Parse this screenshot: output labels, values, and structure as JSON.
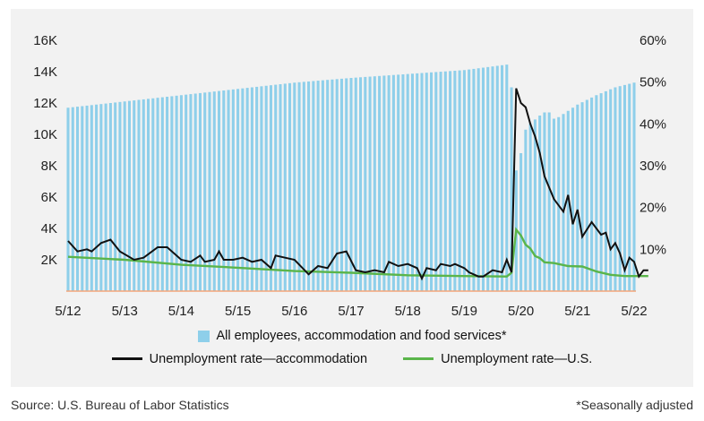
{
  "footer": {
    "source": "Source: U.S. Bureau of Labor Statistics",
    "note": "*Seasonally adjusted"
  },
  "colors": {
    "bars": "#8ecfea",
    "accommodation_line": "#111111",
    "us_line": "#5ab54a",
    "baseline": "#f4a67a"
  },
  "chart_data": {
    "type": "bar+line",
    "x_ticks": [
      "5/12",
      "5/13",
      "5/14",
      "5/15",
      "5/16",
      "5/17",
      "5/18",
      "5/19",
      "5/20",
      "5/21",
      "5/22"
    ],
    "x_range": [
      "2012-05",
      "2022-05"
    ],
    "left_axis": {
      "ticks": [
        "16K",
        "14K",
        "12K",
        "10K",
        "8K",
        "6K",
        "4K",
        "2K"
      ],
      "ylim": [
        0,
        16000
      ]
    },
    "right_axis": {
      "ticks": [
        "60%",
        "50%",
        "40%",
        "30%",
        "20%",
        "10%"
      ],
      "ylim": [
        0,
        60
      ]
    },
    "legend": [
      "All employees, accommodation and food services*",
      "Unemployment rate—accommodation",
      "Unemployment rate—U.S."
    ],
    "series": [
      {
        "name": "All employees, accommodation and food services*",
        "kind": "bar",
        "axis": "left",
        "units": "thousands",
        "start": "2012-05",
        "anchors": [
          [
            "2012-05",
            11700
          ],
          [
            "2013-05",
            12100
          ],
          [
            "2014-05",
            12500
          ],
          [
            "2015-05",
            12900
          ],
          [
            "2016-05",
            13300
          ],
          [
            "2017-05",
            13600
          ],
          [
            "2018-05",
            13850
          ],
          [
            "2019-05",
            14100
          ],
          [
            "2020-02",
            14450
          ],
          [
            "2020-03",
            13000
          ],
          [
            "2020-04",
            7700
          ],
          [
            "2020-05",
            8800
          ],
          [
            "2020-06",
            10300
          ],
          [
            "2020-07",
            10700
          ],
          [
            "2020-09",
            11200
          ],
          [
            "2020-10",
            11400
          ],
          [
            "2020-11",
            11400
          ],
          [
            "2020-12",
            11000
          ],
          [
            "2021-01",
            11100
          ],
          [
            "2021-03",
            11500
          ],
          [
            "2021-05",
            11900
          ],
          [
            "2021-09",
            12500
          ],
          [
            "2022-01",
            13000
          ],
          [
            "2022-05",
            13300
          ]
        ]
      },
      {
        "name": "Unemployment rate—accommodation",
        "kind": "line",
        "axis": "right",
        "units": "percent",
        "anchors": [
          [
            "2012-05",
            12.0
          ],
          [
            "2012-07",
            9.5
          ],
          [
            "2012-09",
            10.0
          ],
          [
            "2012-10",
            9.5
          ],
          [
            "2012-12",
            11.5
          ],
          [
            "2013-02",
            12.3
          ],
          [
            "2013-04",
            9.5
          ],
          [
            "2013-07",
            7.5
          ],
          [
            "2013-09",
            8.0
          ],
          [
            "2013-12",
            10.5
          ],
          [
            "2014-02",
            10.5
          ],
          [
            "2014-05",
            7.5
          ],
          [
            "2014-07",
            7.0
          ],
          [
            "2014-09",
            8.5
          ],
          [
            "2014-10",
            7.0
          ],
          [
            "2014-12",
            7.5
          ],
          [
            "2015-01",
            9.5
          ],
          [
            "2015-02",
            7.5
          ],
          [
            "2015-04",
            7.5
          ],
          [
            "2015-06",
            8.0
          ],
          [
            "2015-08",
            7.0
          ],
          [
            "2015-10",
            7.5
          ],
          [
            "2015-12",
            5.5
          ],
          [
            "2016-01",
            8.5
          ],
          [
            "2016-03",
            8.0
          ],
          [
            "2016-05",
            7.5
          ],
          [
            "2016-08",
            4.0
          ],
          [
            "2016-10",
            6.0
          ],
          [
            "2016-12",
            5.5
          ],
          [
            "2017-02",
            9.0
          ],
          [
            "2017-04",
            9.5
          ],
          [
            "2017-06",
            5.0
          ],
          [
            "2017-08",
            4.5
          ],
          [
            "2017-10",
            5.0
          ],
          [
            "2017-12",
            4.5
          ],
          [
            "2018-01",
            7.0
          ],
          [
            "2018-03",
            6.0
          ],
          [
            "2018-05",
            6.5
          ],
          [
            "2018-07",
            5.5
          ],
          [
            "2018-08",
            3.0
          ],
          [
            "2018-09",
            5.5
          ],
          [
            "2018-11",
            5.0
          ],
          [
            "2018-12",
            6.5
          ],
          [
            "2019-02",
            6.0
          ],
          [
            "2019-03",
            6.5
          ],
          [
            "2019-05",
            5.5
          ],
          [
            "2019-06",
            4.5
          ],
          [
            "2019-08",
            3.5
          ],
          [
            "2019-09",
            3.5
          ],
          [
            "2019-11",
            5.0
          ],
          [
            "2020-01",
            4.5
          ],
          [
            "2020-02",
            7.5
          ],
          [
            "2020-03",
            4.5
          ],
          [
            "2020-04",
            48.5
          ],
          [
            "2020-05",
            45.0
          ],
          [
            "2020-06",
            44.0
          ],
          [
            "2020-07",
            40.0
          ],
          [
            "2020-08",
            37.0
          ],
          [
            "2020-09",
            33.0
          ],
          [
            "2020-10",
            27.5
          ],
          [
            "2020-12",
            22.0
          ],
          [
            "2021-02",
            19.0
          ],
          [
            "2021-03",
            23.0
          ],
          [
            "2021-04",
            16.0
          ],
          [
            "2021-05",
            19.5
          ],
          [
            "2021-06",
            13.0
          ],
          [
            "2021-08",
            16.5
          ],
          [
            "2021-10",
            13.5
          ],
          [
            "2021-11",
            14.0
          ],
          [
            "2021-12",
            10.0
          ],
          [
            "2022-01",
            11.5
          ],
          [
            "2022-02",
            9.0
          ],
          [
            "2022-03",
            5.0
          ],
          [
            "2022-04",
            8.0
          ],
          [
            "2022-05",
            7.0
          ],
          [
            "2022-06",
            3.5
          ],
          [
            "2022-07",
            5.0
          ],
          [
            "2022-08",
            5.0
          ]
        ]
      },
      {
        "name": "Unemployment rate—U.S.",
        "kind": "line",
        "axis": "right",
        "units": "percent",
        "anchors": [
          [
            "2012-05",
            8.2
          ],
          [
            "2013-05",
            7.5
          ],
          [
            "2014-05",
            6.3
          ],
          [
            "2015-05",
            5.6
          ],
          [
            "2016-05",
            4.8
          ],
          [
            "2017-05",
            4.4
          ],
          [
            "2018-05",
            3.8
          ],
          [
            "2019-05",
            3.6
          ],
          [
            "2020-02",
            3.5
          ],
          [
            "2020-03",
            4.4
          ],
          [
            "2020-04",
            14.7
          ],
          [
            "2020-05",
            13.3
          ],
          [
            "2020-06",
            11.1
          ],
          [
            "2020-07",
            10.2
          ],
          [
            "2020-08",
            8.4
          ],
          [
            "2020-09",
            7.9
          ],
          [
            "2020-10",
            6.9
          ],
          [
            "2020-12",
            6.7
          ],
          [
            "2021-03",
            6.0
          ],
          [
            "2021-06",
            5.9
          ],
          [
            "2021-09",
            4.7
          ],
          [
            "2021-12",
            3.9
          ],
          [
            "2022-03",
            3.6
          ],
          [
            "2022-08",
            3.6
          ]
        ]
      }
    ]
  }
}
